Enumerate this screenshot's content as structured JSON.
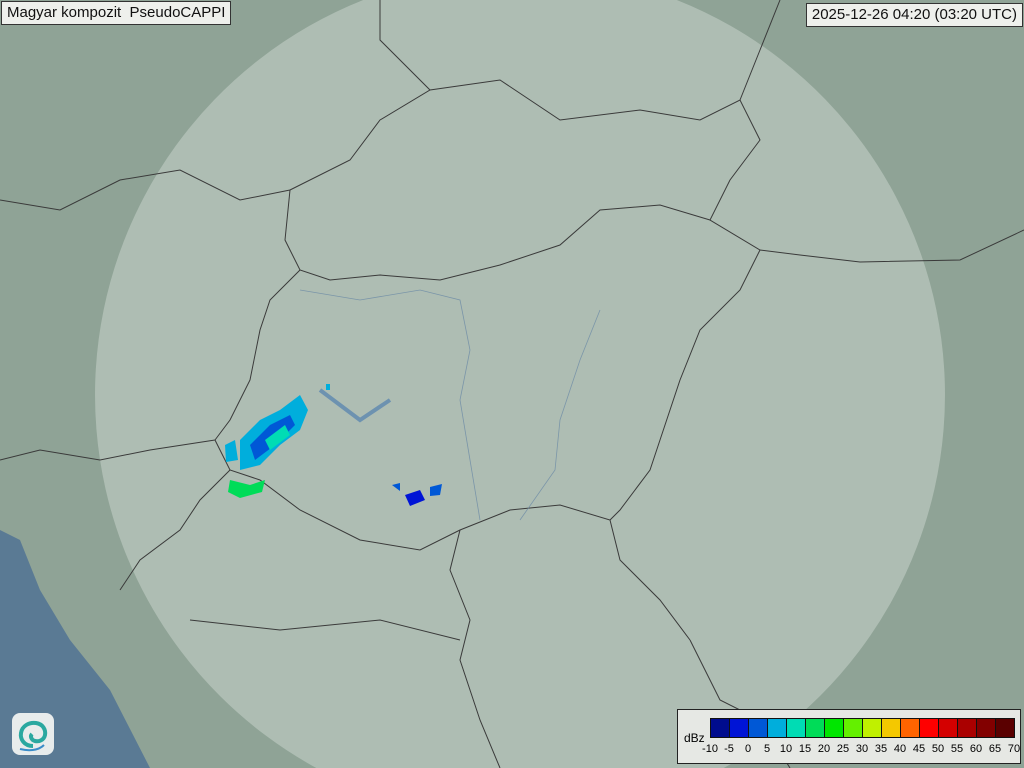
{
  "header": {
    "title": "Magyar kompozit  PseudoCAPPI",
    "timestamp": "2025-12-26 04:20 (03:20 UTC)"
  },
  "legend": {
    "unit": "dBz",
    "ticks": [
      "-10",
      "-5",
      "0",
      "5",
      "10",
      "15",
      "20",
      "25",
      "30",
      "35",
      "40",
      "45",
      "50",
      "55",
      "60",
      "65",
      "70"
    ],
    "colors": [
      "#000c8e",
      "#0014d6",
      "#0058d6",
      "#00aedc",
      "#00dcb4",
      "#00dc58",
      "#00e600",
      "#64f000",
      "#c0f000",
      "#f4c800",
      "#ff6400",
      "#ff0000",
      "#d40000",
      "#aa0000",
      "#820000",
      "#5a0000"
    ]
  },
  "map": {
    "land_color": "#8fa396",
    "coverage_color": "#c3d0c8",
    "sea_color": "#5a7a94",
    "border_color": "#3a3a3a"
  },
  "logo": {
    "icon": "omsz-swirl-logo"
  }
}
